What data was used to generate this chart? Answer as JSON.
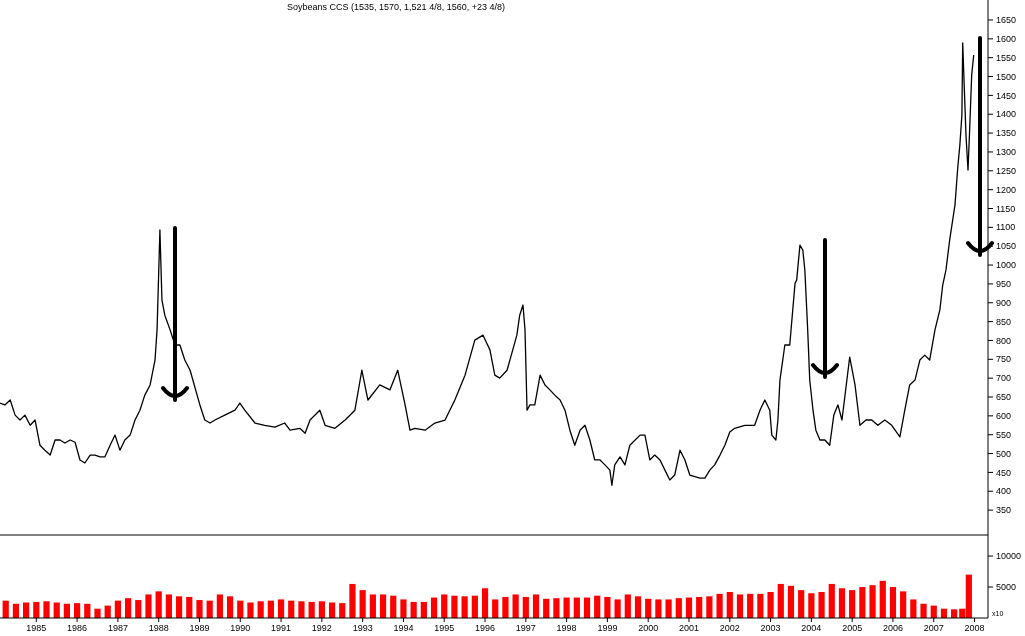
{
  "chart_data": [
    {
      "type": "line",
      "title": "Soybeans CCS (1535, 1570, 1,521 4/8, 1560, +23 4/8)",
      "xlim": [
        1984.61,
        2008.83
      ],
      "ylim": [
        284,
        1703
      ],
      "yticks": [
        350,
        400,
        450,
        500,
        550,
        600,
        650,
        700,
        750,
        800,
        850,
        900,
        950,
        1000,
        1050,
        1100,
        1150,
        1200,
        1250,
        1300,
        1350,
        1400,
        1450,
        1500,
        1550,
        1600,
        1650
      ],
      "tick_labels": "y",
      "series": [
        {
          "color": "#000000",
          "x": [
            1984.61,
            1984.73,
            1984.86,
            1984.98,
            1985.1,
            1985.22,
            1985.35,
            1985.47,
            1985.59,
            1985.71,
            1985.84,
            1985.96,
            1986.08,
            1986.2,
            1986.33,
            1986.45,
            1986.57,
            1986.69,
            1986.82,
            1986.94,
            1987.06,
            1987.18,
            1987.31,
            1987.43,
            1987.55,
            1987.67,
            1987.8,
            1987.92,
            1988.04,
            1988.16,
            1988.29,
            1988.41,
            1988.46,
            1988.53,
            1988.58,
            1988.65,
            1988.78,
            1988.9,
            1989.02,
            1989.14,
            1989.27,
            1989.51,
            1989.63,
            1989.76,
            1989.88,
            1990.12,
            1990.37,
            1990.49,
            1990.61,
            1990.86,
            1991.1,
            1991.35,
            1991.59,
            1991.72,
            1991.96,
            1992.09,
            1992.21,
            1992.45,
            1992.58,
            1992.82,
            1993.07,
            1993.31,
            1993.48,
            1993.63,
            1993.92,
            1994.17,
            1994.36,
            1994.54,
            1994.66,
            1994.78,
            1995.03,
            1995.27,
            1995.52,
            1995.76,
            1996.01,
            1996.25,
            1996.45,
            1996.62,
            1996.74,
            1996.86,
            1997.04,
            1997.18,
            1997.28,
            1997.35,
            1997.43,
            1997.48,
            1997.53,
            1997.6,
            1997.72,
            1997.85,
            1997.97,
            1998.09,
            1998.21,
            1998.34,
            1998.46,
            1998.58,
            1998.7,
            1998.83,
            1998.95,
            1999.07,
            1999.19,
            1999.32,
            1999.44,
            1999.56,
            1999.61,
            1999.68,
            1999.81,
            1999.93,
            2000.05,
            2000.3,
            2000.42,
            2000.54,
            2000.66,
            2000.79,
            2000.91,
            2001.03,
            2001.15,
            2001.28,
            2001.4,
            2001.52,
            2001.77,
            2001.89,
            2002.01,
            2002.13,
            2002.26,
            2002.38,
            2002.5,
            2002.62,
            2002.87,
            2003.11,
            2003.24,
            2003.36,
            2003.48,
            2003.53,
            2003.63,
            2003.68,
            2003.73,
            2003.85,
            2003.97,
            2004.1,
            2004.14,
            2004.22,
            2004.29,
            2004.34,
            2004.41,
            2004.46,
            2004.54,
            2004.61,
            2004.71,
            2004.83,
            2004.95,
            2005.05,
            2005.15,
            2005.25,
            2005.44,
            2005.57,
            2005.69,
            2005.84,
            2005.98,
            2006.13,
            2006.3,
            2006.47,
            2006.67,
            2006.79,
            2006.91,
            2007.04,
            2007.16,
            2007.28,
            2007.4,
            2007.53,
            2007.65,
            2007.72,
            2007.8,
            2007.89,
            2008.02,
            2008.09,
            2008.14,
            2008.19,
            2008.21,
            2008.29,
            2008.34,
            2008.38,
            2008.43,
            2008.48
          ],
          "values": [
            634,
            629,
            642,
            602,
            589,
            602,
            575,
            589,
            522,
            509,
            496,
            536,
            536,
            528,
            536,
            530,
            483,
            475,
            496,
            496,
            491,
            491,
            522,
            549,
            509,
            536,
            549,
            589,
            615,
            655,
            682,
            748,
            828,
            1093,
            907,
            867,
            828,
            788,
            788,
            748,
            721,
            629,
            589,
            581,
            589,
            602,
            615,
            634,
            615,
            581,
            575,
            570,
            581,
            562,
            567,
            554,
            589,
            615,
            575,
            567,
            589,
            615,
            721,
            642,
            682,
            669,
            721,
            629,
            562,
            567,
            562,
            581,
            589,
            642,
            708,
            801,
            814,
            775,
            708,
            700,
            721,
            775,
            814,
            867,
            894,
            828,
            615,
            629,
            629,
            708,
            682,
            669,
            655,
            642,
            615,
            562,
            522,
            562,
            575,
            536,
            483,
            483,
            470,
            456,
            416,
            470,
            491,
            470,
            522,
            549,
            549,
            483,
            496,
            483,
            456,
            430,
            443,
            509,
            483,
            443,
            435,
            435,
            456,
            470,
            496,
            522,
            557,
            567,
            575,
            575,
            615,
            642,
            615,
            549,
            536,
            589,
            695,
            788,
            788,
            952,
            960,
            1053,
            1040,
            987,
            828,
            695,
            615,
            562,
            536,
            536,
            522,
            602,
            629,
            589,
            756,
            682,
            575,
            589,
            589,
            575,
            589,
            575,
            544,
            615,
            682,
            695,
            748,
            761,
            748,
            828,
            881,
            947,
            987,
            1066,
            1159,
            1260,
            1318,
            1398,
            1589,
            1345,
            1252,
            1358,
            1504,
            1557
          ]
        }
      ]
    },
    {
      "type": "bar",
      "xlim": [
        1984.61,
        2008.83
      ],
      "ylim": [
        0,
        13400
      ],
      "yticks": [
        5000,
        10000
      ],
      "xticks": [
        {
          "value": 1985.5,
          "label": "1985"
        },
        {
          "value": 1986.5,
          "label": "1986"
        },
        {
          "value": 1987.5,
          "label": "1987"
        },
        {
          "value": 1988.5,
          "label": "1988"
        },
        {
          "value": 1989.5,
          "label": "1989"
        },
        {
          "value": 1990.5,
          "label": "1990"
        },
        {
          "value": 1991.5,
          "label": "1991"
        },
        {
          "value": 1992.5,
          "label": "1992"
        },
        {
          "value": 1993.5,
          "label": "1993"
        },
        {
          "value": 1994.5,
          "label": "1994"
        },
        {
          "value": 1995.5,
          "label": "1995"
        },
        {
          "value": 1996.5,
          "label": "1996"
        },
        {
          "value": 1997.5,
          "label": "1997"
        },
        {
          "value": 1998.5,
          "label": "1998"
        },
        {
          "value": 1999.5,
          "label": "1999"
        },
        {
          "value": 2000.5,
          "label": "2000"
        },
        {
          "value": 2001.5,
          "label": "2001"
        },
        {
          "value": 2002.5,
          "label": "2002"
        },
        {
          "value": 2003.5,
          "label": "2003"
        },
        {
          "value": 2004.5,
          "label": "2004"
        },
        {
          "value": 2005.5,
          "label": "2005"
        },
        {
          "value": 2006.5,
          "label": "2006"
        },
        {
          "value": 2007.5,
          "label": "2007"
        },
        {
          "value": 2008.5,
          "label": "2008"
        }
      ],
      "annotations": [
        "x10"
      ],
      "series": [
        {
          "color": "#ff0000",
          "x": [
            1984.75,
            1985.0,
            1985.25,
            1985.5,
            1985.75,
            1986.0,
            1986.25,
            1986.5,
            1986.75,
            1987.0,
            1987.25,
            1987.5,
            1987.75,
            1988.0,
            1988.25,
            1988.5,
            1988.75,
            1989.0,
            1989.25,
            1989.5,
            1989.75,
            1990.0,
            1990.25,
            1990.5,
            1990.75,
            1991.0,
            1991.25,
            1991.5,
            1991.75,
            1992.0,
            1992.25,
            1992.5,
            1992.75,
            1993.0,
            1993.25,
            1993.5,
            1993.75,
            1994.0,
            1994.25,
            1994.5,
            1994.75,
            1995.0,
            1995.25,
            1995.5,
            1995.75,
            1996.0,
            1996.25,
            1996.5,
            1996.75,
            1997.0,
            1997.25,
            1997.5,
            1997.75,
            1998.0,
            1998.25,
            1998.5,
            1998.75,
            1999.0,
            1999.25,
            1999.5,
            1999.75,
            2000.0,
            2000.25,
            2000.5,
            2000.75,
            2001.0,
            2001.25,
            2001.5,
            2001.75,
            2002.0,
            2002.25,
            2002.5,
            2002.75,
            2003.0,
            2003.25,
            2003.5,
            2003.75,
            2004.0,
            2004.25,
            2004.5,
            2004.75,
            2005.0,
            2005.25,
            2005.5,
            2005.75,
            2006.0,
            2006.25,
            2006.5,
            2006.75,
            2007.0,
            2007.25,
            2007.5,
            2007.75,
            2008.0,
            2008.2,
            2008.36
          ],
          "values": [
            2800,
            2300,
            2500,
            2600,
            2700,
            2500,
            2300,
            2400,
            2300,
            1500,
            2000,
            2800,
            3200,
            2900,
            3800,
            4300,
            3800,
            3500,
            3400,
            2900,
            2800,
            3800,
            3500,
            2800,
            2500,
            2700,
            2800,
            3000,
            2800,
            2700,
            2600,
            2700,
            2500,
            2400,
            5500,
            4500,
            3800,
            3800,
            3600,
            3000,
            2600,
            2600,
            3300,
            3800,
            3600,
            3500,
            3600,
            4800,
            3000,
            3400,
            3800,
            3400,
            3800,
            3100,
            3200,
            3300,
            3300,
            3300,
            3600,
            3400,
            3000,
            3800,
            3500,
            3100,
            3000,
            3000,
            3200,
            3300,
            3400,
            3500,
            3900,
            4200,
            3800,
            3900,
            3900,
            4200,
            5500,
            5200,
            4500,
            4000,
            4200,
            5500,
            4800,
            4500,
            5000,
            5300,
            6000,
            5000,
            4300,
            3000,
            2300,
            2000,
            1500,
            1400,
            1500,
            7000
          ]
        }
      ]
    }
  ]
}
